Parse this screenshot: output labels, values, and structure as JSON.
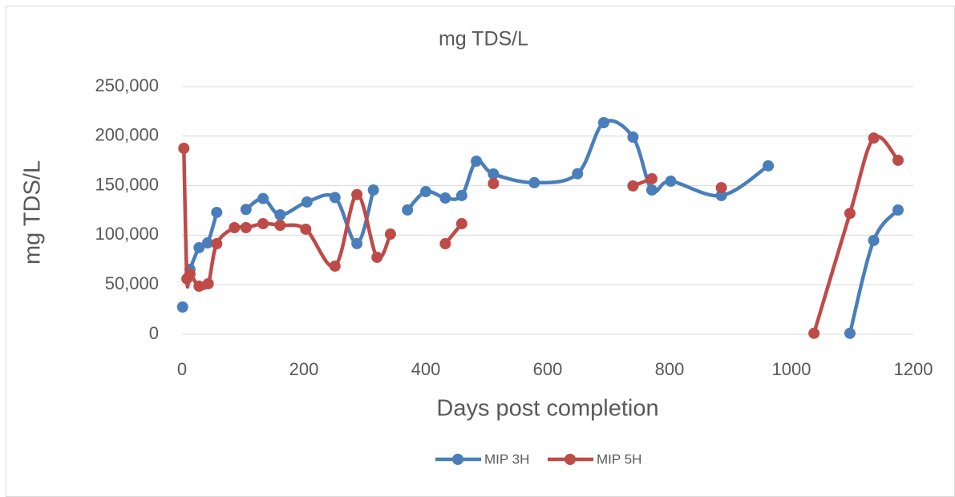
{
  "chart_data": {
    "type": "scatter-smooth",
    "title": "mg TDS/L",
    "x_label": "Days post completion",
    "y_label": "mg TDS/L",
    "xlim": [
      0,
      1200
    ],
    "xticks": [
      0,
      200,
      400,
      600,
      800,
      1000,
      1200
    ],
    "ylim": [
      0,
      250000
    ],
    "yticks": [
      0,
      {
        "value": 50000,
        "label": "50,000"
      },
      {
        "value": 100000,
        "label": "100,000"
      },
      {
        "value": 150000,
        "label": "150,000"
      },
      {
        "value": 200000,
        "label": "200,000"
      },
      {
        "value": 250000,
        "label": "250,000"
      }
    ],
    "grid": true,
    "legend": "bottom",
    "series": [
      {
        "name": "MIP 3H",
        "color": "#4a7ebb",
        "x": [
          1,
          null,
          13,
          28,
          42,
          57,
          null,
          105,
          133,
          161,
          205,
          251,
          287,
          314,
          null,
          370,
          400,
          432,
          459,
          483,
          511,
          578,
          649,
          692,
          740,
          771,
          802,
          885,
          962,
          null,
          1096,
          1135,
          1175
        ],
        "values": [
          27500,
          null,
          65500,
          87400,
          92200,
          123000,
          null,
          126000,
          137000,
          120500,
          133500,
          138000,
          91500,
          145600,
          null,
          125500,
          144000,
          137500,
          140000,
          174700,
          161800,
          153000,
          162000,
          213600,
          199000,
          145600,
          154500,
          140000,
          170000,
          null,
          1000,
          94700,
          125400
        ]
      },
      {
        "name": "MIP 5H",
        "color": "#be4b48",
        "x": [
          3,
          8,
          13,
          28,
          43,
          57,
          86,
          105,
          133,
          161,
          203,
          251,
          287,
          320,
          342,
          null,
          432,
          459,
          null,
          511,
          null,
          740,
          771,
          null,
          885,
          null,
          1037,
          1096,
          1135,
          1175
        ],
        "values": [
          187700,
          56000,
          60700,
          48500,
          51000,
          91400,
          107600,
          107600,
          111600,
          110000,
          106000,
          68800,
          141000,
          77700,
          101100,
          null,
          91400,
          111600,
          null,
          152100,
          null,
          149700,
          157000,
          null,
          148000,
          null,
          1000,
          122000,
          198000,
          175600
        ]
      }
    ]
  }
}
